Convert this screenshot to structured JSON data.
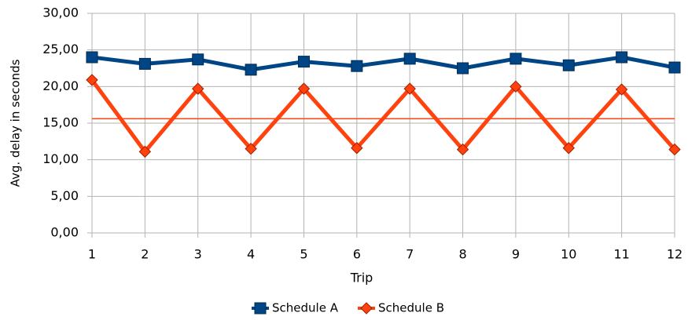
{
  "chart_data": {
    "type": "line",
    "x_label": "Trip",
    "y_label": "Avg. delay in seconds",
    "categories": [
      "1",
      "2",
      "3",
      "4",
      "5",
      "6",
      "7",
      "8",
      "9",
      "10",
      "11",
      "12"
    ],
    "series": [
      {
        "name": "Schedule A",
        "color": "#004586",
        "marker": "square",
        "values": [
          24.0,
          23.1,
          23.7,
          22.3,
          23.4,
          22.8,
          23.8,
          22.5,
          23.8,
          22.9,
          24.0,
          22.6
        ]
      },
      {
        "name": "Schedule B",
        "color": "#ff420e",
        "marker": "diamond",
        "values": [
          20.9,
          11.1,
          19.7,
          11.5,
          19.7,
          11.6,
          19.7,
          11.4,
          20.0,
          11.6,
          19.6,
          11.4
        ]
      }
    ],
    "reference_line": {
      "value": 15.6,
      "color": "#ff420e"
    },
    "ylim": [
      0,
      30
    ],
    "yticks": [
      {
        "value": 0,
        "label": "0,00"
      },
      {
        "value": 5,
        "label": "5,00"
      },
      {
        "value": 10,
        "label": "10,00"
      },
      {
        "value": 15,
        "label": "15,00"
      },
      {
        "value": 20,
        "label": "20,00"
      },
      {
        "value": 25,
        "label": "25,00"
      },
      {
        "value": 30,
        "label": "30,00"
      }
    ],
    "grid": true,
    "legend": "bottom"
  }
}
